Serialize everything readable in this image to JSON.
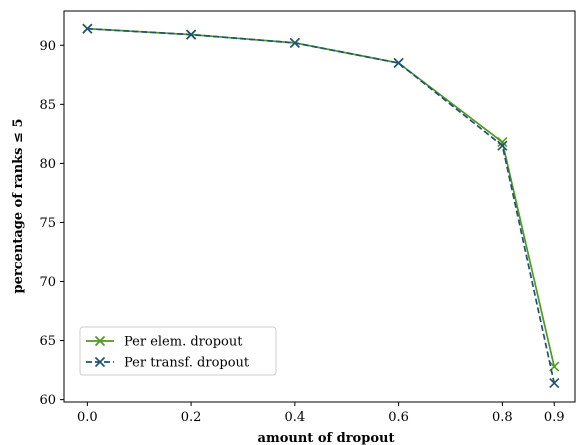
{
  "chart_data": {
    "type": "line",
    "xlabel": "amount of dropout",
    "ylabel": "percentage of ranks ≤ 5",
    "x": [
      0.0,
      0.2,
      0.4,
      0.6,
      0.8,
      0.9
    ],
    "x_ticks": [
      "0.0",
      "0.2",
      "0.4",
      "0.6",
      "0.8",
      "0.9"
    ],
    "y_ticks": [
      60,
      65,
      70,
      75,
      80,
      85,
      90
    ],
    "xlim": [
      -0.045,
      0.94
    ],
    "ylim": [
      59.8,
      92.9
    ],
    "grid": false,
    "legend_position": "lower-left",
    "series": [
      {
        "name": "Per elem. dropout",
        "values": [
          91.4,
          90.9,
          90.2,
          88.5,
          81.8,
          62.8
        ],
        "color": "#4f9a1e",
        "line_style": "solid",
        "marker": "x"
      },
      {
        "name": "Per transf. dropout",
        "values": [
          91.4,
          90.9,
          90.2,
          88.5,
          81.5,
          61.4
        ],
        "color": "#1f5273",
        "line_style": "dashed",
        "marker": "x"
      }
    ]
  }
}
